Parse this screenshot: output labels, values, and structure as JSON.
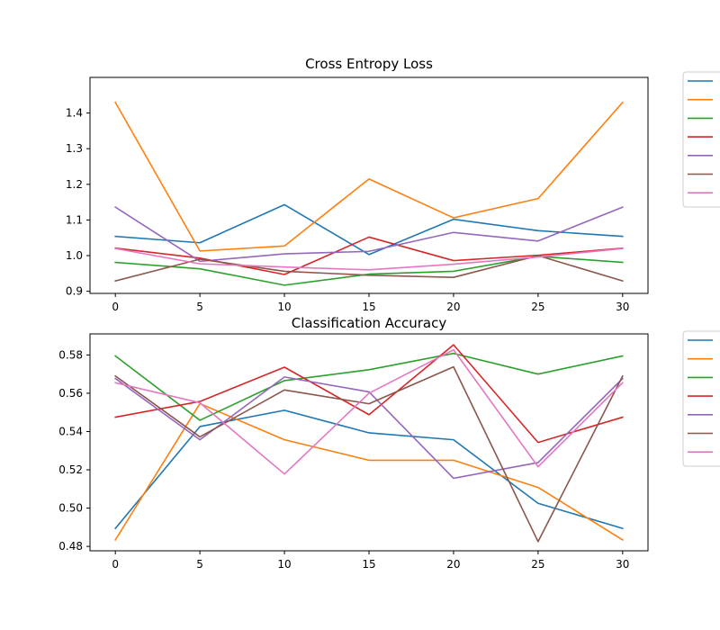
{
  "chart_data": [
    {
      "type": "line",
      "title": "Cross Entropy Loss",
      "xlabel": "",
      "ylabel": "",
      "x": [
        0,
        5,
        10,
        15,
        20,
        25,
        30
      ],
      "xlim": [
        -1.5,
        31.5
      ],
      "ylim": [
        0.894,
        1.5
      ],
      "xticks": [
        0,
        5,
        10,
        15,
        20,
        25,
        30
      ],
      "yticks": [
        0.9,
        1.0,
        1.1,
        1.2,
        1.3,
        1.4
      ],
      "ytick_decimals": 1,
      "legend_loc": "outside-right",
      "series": [
        {
          "color": "#1f77b4",
          "values": [
            1.054,
            1.036,
            1.143,
            1.003,
            1.102,
            1.07,
            1.054
          ]
        },
        {
          "color": "#ff7f0e",
          "values": [
            1.43,
            1.013,
            1.027,
            1.215,
            1.106,
            1.16,
            1.43
          ]
        },
        {
          "color": "#2ca02c",
          "values": [
            0.981,
            0.963,
            0.917,
            0.948,
            0.956,
            0.998,
            0.981
          ]
        },
        {
          "color": "#d62728",
          "values": [
            1.021,
            0.993,
            0.947,
            1.052,
            0.986,
            1.001,
            1.021
          ]
        },
        {
          "color": "#9467bd",
          "values": [
            1.136,
            0.984,
            1.005,
            1.012,
            1.065,
            1.041,
            1.136
          ]
        },
        {
          "color": "#8c564b",
          "values": [
            0.929,
            0.99,
            0.956,
            0.945,
            0.939,
            1.0,
            0.929
          ]
        },
        {
          "color": "#e377c2",
          "values": [
            1.02,
            0.977,
            0.968,
            0.96,
            0.976,
            0.996,
            1.02
          ]
        }
      ]
    },
    {
      "type": "line",
      "title": "Classification Accuracy",
      "xlabel": "",
      "ylabel": "",
      "x": [
        0,
        5,
        10,
        15,
        20,
        25,
        30
      ],
      "xlim": [
        -1.5,
        31.5
      ],
      "ylim": [
        0.4777,
        0.591
      ],
      "xticks": [
        0,
        5,
        10,
        15,
        20,
        25,
        30
      ],
      "yticks": [
        0.48,
        0.5,
        0.52,
        0.54,
        0.56,
        0.58
      ],
      "ytick_decimals": 2,
      "legend_loc": "outside-right",
      "series": [
        {
          "color": "#1f77b4",
          "values": [
            0.4894,
            0.5426,
            0.5511,
            0.5393,
            0.5357,
            0.5025,
            0.4894
          ]
        },
        {
          "color": "#ff7f0e",
          "values": [
            0.4834,
            0.5546,
            0.5357,
            0.525,
            0.525,
            0.5108,
            0.4834
          ]
        },
        {
          "color": "#2ca02c",
          "values": [
            0.5795,
            0.5459,
            0.5666,
            0.5723,
            0.5808,
            0.57,
            0.5795
          ]
        },
        {
          "color": "#d62728",
          "values": [
            0.5475,
            0.5557,
            0.5736,
            0.5488,
            0.5853,
            0.5343,
            0.5475
          ]
        },
        {
          "color": "#9467bd",
          "values": [
            0.5677,
            0.5357,
            0.5685,
            0.5607,
            0.5156,
            0.5238,
            0.5677
          ]
        },
        {
          "color": "#8c564b",
          "values": [
            0.569,
            0.5372,
            0.5617,
            0.5545,
            0.5738,
            0.4825,
            0.569
          ]
        },
        {
          "color": "#e377c2",
          "values": [
            0.5655,
            0.555,
            0.5178,
            0.56,
            0.5827,
            0.5216,
            0.5655
          ]
        }
      ]
    }
  ]
}
